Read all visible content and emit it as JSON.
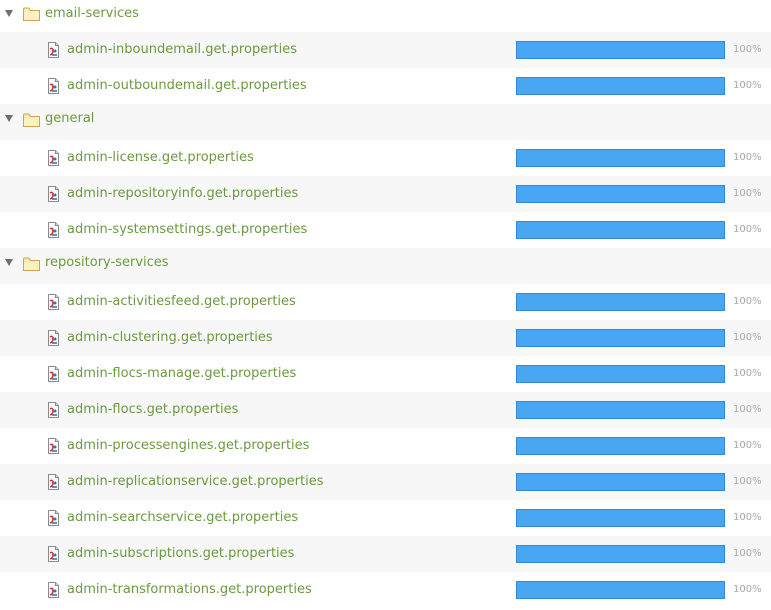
{
  "folders": [
    {
      "name": "email-services",
      "items": [
        {
          "label": "admin-inboundemail.get.properties",
          "percent": 100,
          "percent_text": "100%"
        },
        {
          "label": "admin-outboundemail.get.properties",
          "percent": 100,
          "percent_text": "100%"
        }
      ]
    },
    {
      "name": "general",
      "items": [
        {
          "label": "admin-license.get.properties",
          "percent": 100,
          "percent_text": "100%"
        },
        {
          "label": "admin-repositoryinfo.get.properties",
          "percent": 100,
          "percent_text": "100%"
        },
        {
          "label": "admin-systemsettings.get.properties",
          "percent": 100,
          "percent_text": "100%"
        }
      ]
    },
    {
      "name": "repository-services",
      "items": [
        {
          "label": "admin-activitiesfeed.get.properties",
          "percent": 100,
          "percent_text": "100%"
        },
        {
          "label": "admin-clustering.get.properties",
          "percent": 100,
          "percent_text": "100%"
        },
        {
          "label": "admin-flocs-manage.get.properties",
          "percent": 100,
          "percent_text": "100%"
        },
        {
          "label": "admin-flocs.get.properties",
          "percent": 100,
          "percent_text": "100%"
        },
        {
          "label": "admin-processengines.get.properties",
          "percent": 100,
          "percent_text": "100%"
        },
        {
          "label": "admin-replicationservice.get.properties",
          "percent": 100,
          "percent_text": "100%"
        },
        {
          "label": "admin-searchservice.get.properties",
          "percent": 100,
          "percent_text": "100%"
        },
        {
          "label": "admin-subscriptions.get.properties",
          "percent": 100,
          "percent_text": "100%"
        },
        {
          "label": "admin-transformations.get.properties",
          "percent": 100,
          "percent_text": "100%"
        }
      ]
    }
  ],
  "colors": {
    "link": "#6b9a3e",
    "bar": "#48a6f3",
    "bar_border": "#2f8ad6",
    "alt_row": "#f7f7f7",
    "percent_text": "#a9a9a9"
  },
  "icons": {
    "folder": "folder-icon",
    "file": "properties-file-icon",
    "toggle": "expand-triangle-icon"
  }
}
